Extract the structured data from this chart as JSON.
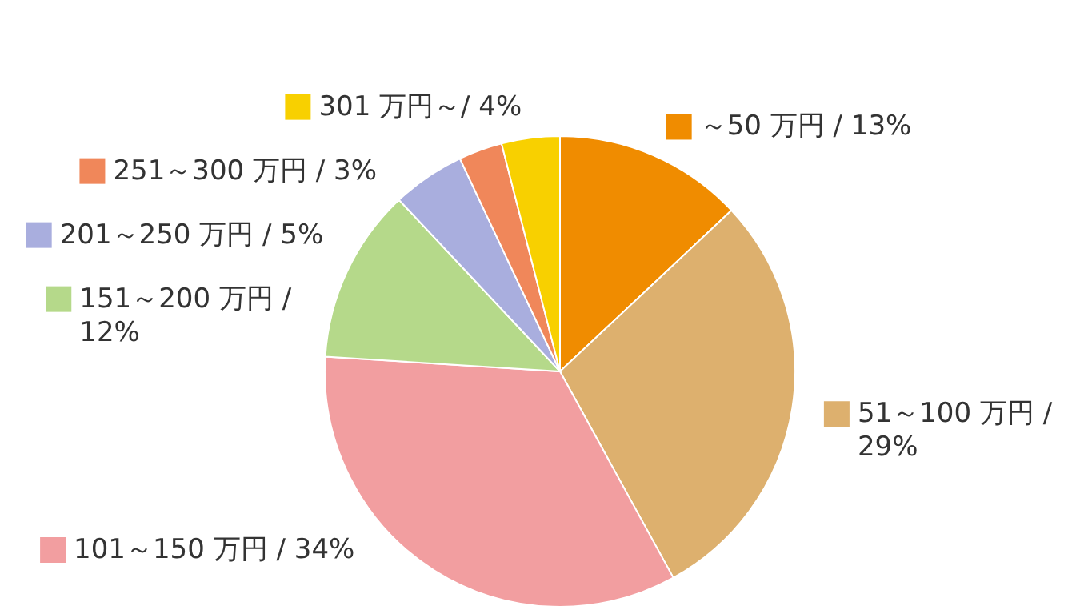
{
  "chart_data": {
    "type": "pie",
    "categories": [
      "～50 万円 /",
      "51～100 万円 /",
      "101～150 万円 /",
      "151～200 万円 /",
      "201～250 万円 /",
      "251～300 万円 /",
      "301 万円～/"
    ],
    "values": [
      13,
      29,
      34,
      12,
      5,
      3,
      4
    ],
    "legend": "left",
    "value_labels": [
      "13%",
      "29%",
      "34%",
      "12%",
      "5%",
      "3%",
      "4%"
    ],
    "colors": [
      "#f08c00",
      "#ddb06e",
      "#f29ea0",
      "#b5d98a",
      "#a9aede",
      "#f0875a",
      "#f8d000"
    ]
  }
}
